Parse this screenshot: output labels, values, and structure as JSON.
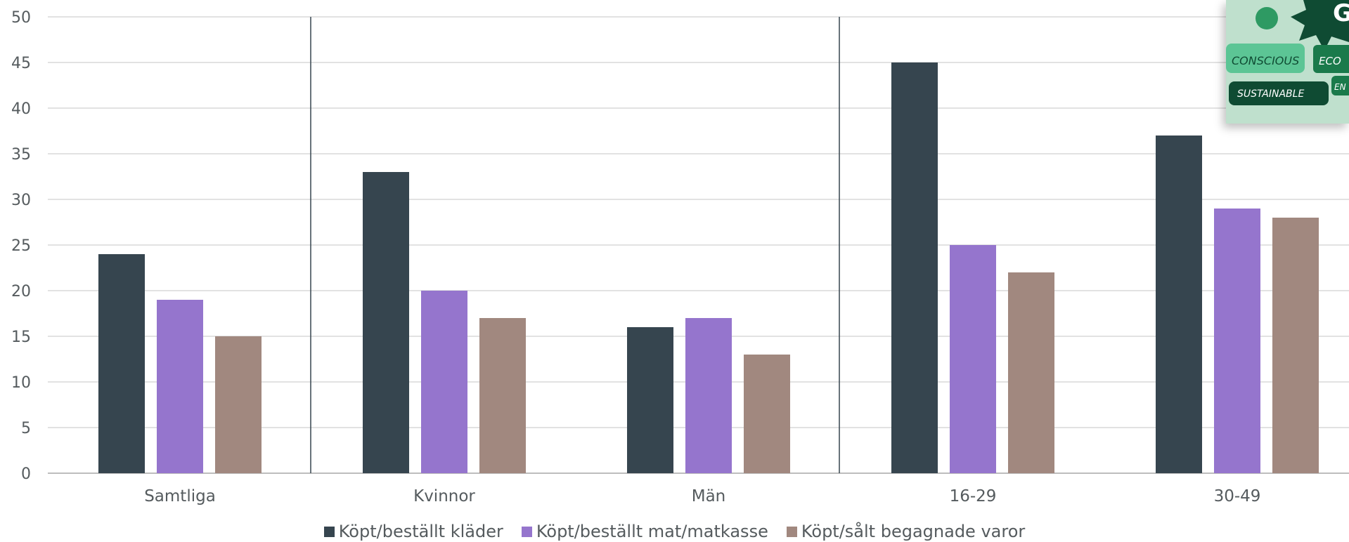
{
  "chart_data": {
    "type": "bar",
    "categories": [
      "Samtliga",
      "Kvinnor",
      "Män",
      "16-29",
      "30-49"
    ],
    "series": [
      {
        "name": "Köpt/beställt kläder",
        "color": "#36454f",
        "values": [
          24,
          33,
          16,
          45,
          37
        ]
      },
      {
        "name": "Köpt/beställt mat/matkasse",
        "color": "#9575cd",
        "values": [
          19,
          20,
          17,
          25,
          29
        ]
      },
      {
        "name": "Köpt/sålt begagnade varor",
        "color": "#a1887f",
        "values": [
          15,
          17,
          13,
          22,
          28
        ]
      }
    ],
    "ylim": [
      0,
      50
    ],
    "yticks": [
      0,
      5,
      10,
      15,
      20,
      25,
      30,
      35,
      40,
      45,
      50
    ],
    "grid": true,
    "legend_position": "bottom",
    "group_separators_after": [
      "Samtliga",
      "Män"
    ]
  },
  "photo": {
    "words": [
      "CONSCIOUS",
      "ECO",
      "SUSTAINABLE",
      "EN",
      "GR"
    ]
  }
}
